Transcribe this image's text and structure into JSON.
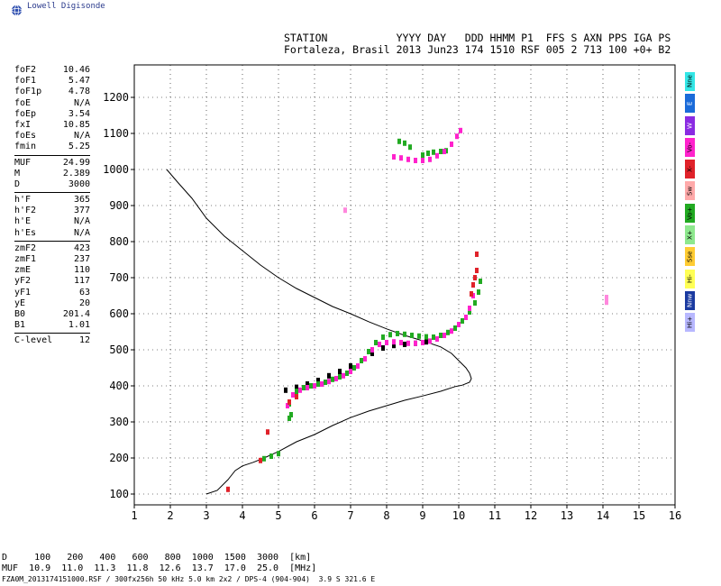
{
  "brand": {
    "name": "Lowell Digisonde"
  },
  "header": {
    "line1": "STATION           YYYY DAY   DDD HHMM P1  FFS S AXN PPS IGA PS",
    "line2": "Fortaleza, Brasil 2013 Jun23 174 1510 RSF 005 2 713 100 +0+ B2"
  },
  "params": [
    {
      "name": "foF2",
      "value": "10.46"
    },
    {
      "name": "foF1",
      "value": "5.47"
    },
    {
      "name": "foF1p",
      "value": "4.78"
    },
    {
      "name": "foE",
      "value": "N/A"
    },
    {
      "name": "foEp",
      "value": "3.54"
    },
    {
      "name": "fxI",
      "value": "10.85"
    },
    {
      "name": "foEs",
      "value": "N/A"
    },
    {
      "name": "fmin",
      "value": "5.25"
    },
    {
      "sep": true
    },
    {
      "name": "MUF",
      "value": "24.99"
    },
    {
      "name": "M",
      "value": "2.389"
    },
    {
      "name": "D",
      "value": "3000"
    },
    {
      "sep": true
    },
    {
      "name": "h'F",
      "value": "365"
    },
    {
      "name": "h'F2",
      "value": "377"
    },
    {
      "name": "h'E",
      "value": "N/A"
    },
    {
      "name": "h'Es",
      "value": "N/A"
    },
    {
      "sep": true
    },
    {
      "name": "zmF2",
      "value": "423"
    },
    {
      "name": "zmF1",
      "value": "237"
    },
    {
      "name": "zmE",
      "value": "110"
    },
    {
      "name": "yF2",
      "value": "117"
    },
    {
      "name": "yF1",
      "value": "63"
    },
    {
      "name": "yE",
      "value": "20"
    },
    {
      "name": "B0",
      "value": "201.4"
    },
    {
      "name": "B1",
      "value": "1.01"
    },
    {
      "sep": true
    },
    {
      "name": "C-level",
      "value": "12"
    }
  ],
  "legend": [
    {
      "label": "Nne",
      "color": "#33e6e6"
    },
    {
      "label": "E",
      "color": "#1a6bd9"
    },
    {
      "label": "W",
      "color": "#8a2be2"
    },
    {
      "label": "Vo-",
      "color": "#ff22cc"
    },
    {
      "label": "X-",
      "color": "#e0222a"
    },
    {
      "label": "Sw",
      "color": "#ffaaaa"
    },
    {
      "label": "Vo+",
      "color": "#22aa22"
    },
    {
      "label": "X+",
      "color": "#8ee88e"
    },
    {
      "label": "Sse",
      "color": "#ffcc33"
    },
    {
      "label": "Hi-",
      "color": "#ffff55"
    },
    {
      "label": "Nnw",
      "color": "#1a3aa0"
    },
    {
      "label": "Hi+",
      "color": "#b8b8ff"
    }
  ],
  "bottom": {
    "line1": "D     100   200   400   600   800  1000  1500  3000  [km]",
    "line2": "MUF  10.9  11.0  11.3  11.8  12.6  13.7  17.0  25.0  [MHz]",
    "footer": "FZA0M_2013174151000.RSF / 300fx256h 50 kHz 5.0 km 2x2 / DPS-4 (904-904)  3.9 S 321.6 E"
  },
  "chart_data": {
    "type": "scatter",
    "xlim": [
      1,
      16
    ],
    "ylim": [
      70,
      1290
    ],
    "xticks": [
      1,
      2,
      3,
      4,
      5,
      6,
      7,
      8,
      9,
      10,
      11,
      12,
      13,
      14,
      15,
      16
    ],
    "yticks": [
      100,
      200,
      300,
      400,
      500,
      600,
      700,
      800,
      900,
      1000,
      1100,
      1200
    ],
    "grid": true,
    "series": [
      {
        "key": "profile",
        "color": "#000000",
        "x": [
          1.9,
          2.2,
          2.6,
          3.0,
          3.5,
          4.0,
          4.5,
          5.0,
          5.5,
          6.0,
          6.5,
          7.0,
          7.5,
          8.0,
          8.5,
          9.0,
          9.5,
          9.8,
          10.0,
          10.2,
          10.3,
          10.35,
          10.3,
          10.1,
          9.9,
          9.5,
          9.0,
          8.5,
          8.0,
          7.5,
          7.0,
          6.5,
          6.0,
          5.5,
          5.0,
          4.6,
          4.3,
          4.0,
          3.8,
          3.6,
          3.3,
          3.0
        ],
        "y": [
          1000,
          965,
          920,
          865,
          815,
          775,
          735,
          700,
          670,
          645,
          620,
          600,
          578,
          558,
          540,
          525,
          508,
          490,
          470,
          450,
          435,
          420,
          410,
          402,
          398,
          385,
          372,
          360,
          345,
          330,
          312,
          290,
          265,
          245,
          218,
          200,
          188,
          178,
          165,
          140,
          110,
          100
        ]
      },
      {
        "key": "trace-f-black",
        "color": "#000000",
        "x": [
          5.2,
          5.5,
          5.8,
          6.1,
          6.4,
          6.7,
          7.0,
          7.3,
          7.6,
          7.9,
          8.2,
          8.5,
          8.8,
          9.1,
          9.4
        ],
        "y": [
          388,
          396,
          405,
          415,
          428,
          440,
          455,
          470,
          490,
          505,
          512,
          515,
          518,
          522,
          530
        ]
      },
      {
        "key": "oF-green",
        "color": "#22aa22",
        "x": [
          5.3,
          5.5,
          5.7,
          5.9,
          6.1,
          6.3,
          6.5,
          6.7,
          6.9,
          7.1,
          7.3,
          7.5,
          7.7,
          7.9,
          8.1,
          8.3,
          8.5,
          8.7,
          8.9,
          9.1,
          9.3,
          9.5,
          9.7,
          9.9,
          10.1,
          10.3,
          10.45,
          10.55,
          10.6
        ],
        "y": [
          350,
          385,
          395,
          400,
          405,
          410,
          418,
          425,
          435,
          450,
          470,
          495,
          520,
          535,
          542,
          545,
          543,
          540,
          538,
          536,
          535,
          540,
          548,
          560,
          580,
          605,
          630,
          660,
          690
        ]
      },
      {
        "key": "oF-magenta",
        "color": "#ff22cc",
        "x": [
          5.25,
          5.4,
          5.6,
          5.8,
          6.0,
          6.2,
          6.4,
          6.6,
          6.8,
          7.0,
          7.2,
          7.4,
          7.6,
          7.8,
          8.0,
          8.2,
          8.4,
          8.6,
          8.8,
          9.0,
          9.2,
          9.4,
          9.6,
          9.8,
          10.0,
          10.2,
          10.3,
          10.4
        ],
        "y": [
          345,
          375,
          388,
          395,
          400,
          405,
          412,
          420,
          428,
          440,
          455,
          475,
          500,
          515,
          520,
          522,
          520,
          518,
          518,
          520,
          524,
          530,
          540,
          552,
          570,
          590,
          615,
          650
        ]
      },
      {
        "key": "oF-red",
        "color": "#e0222a",
        "x": [
          5.3,
          5.5,
          10.35,
          10.4,
          10.45,
          10.5,
          10.5,
          4.5,
          4.7,
          3.6
        ],
        "y": [
          355,
          370,
          655,
          680,
          700,
          720,
          765,
          193,
          272,
          113
        ]
      },
      {
        "key": "lowE-green",
        "color": "#22aa22",
        "x": [
          4.6,
          4.8,
          5.0,
          5.3,
          5.35
        ],
        "y": [
          198,
          205,
          212,
          310,
          320
        ]
      },
      {
        "key": "upper-green",
        "color": "#22aa22",
        "x": [
          8.35,
          8.5,
          8.65,
          9.0,
          9.15,
          9.3,
          9.5,
          9.65
        ],
        "y": [
          1078,
          1073,
          1062,
          1040,
          1045,
          1048,
          1050,
          1052
        ]
      },
      {
        "key": "upper-magenta",
        "color": "#ff22cc",
        "x": [
          8.2,
          8.4,
          8.6,
          8.8,
          9.0,
          9.2,
          9.4,
          9.6,
          9.8,
          9.95,
          10.05
        ],
        "y": [
          1035,
          1032,
          1028,
          1025,
          1025,
          1028,
          1038,
          1050,
          1070,
          1092,
          1108
        ]
      },
      {
        "key": "stray",
        "color": "#ff88dd",
        "x": [
          6.85,
          14.1,
          14.1
        ],
        "y": [
          887,
          645,
          632
        ]
      }
    ]
  }
}
